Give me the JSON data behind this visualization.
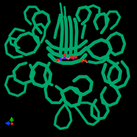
{
  "background_color": "#000000",
  "protein_color": "#00A86B",
  "protein_color_dark": "#006644",
  "protein_edge": "#003322",
  "ligand_pink": "#FF69B4",
  "ligand_magenta": "#FF00AA",
  "oxygen_color": "#FF2200",
  "nitrogen_color": "#3333FF",
  "sulfur_color": "#AAAA00",
  "axis_x_color": "#0044FF",
  "axis_y_color": "#00BB00",
  "axis_origin_color": "#FF2200"
}
